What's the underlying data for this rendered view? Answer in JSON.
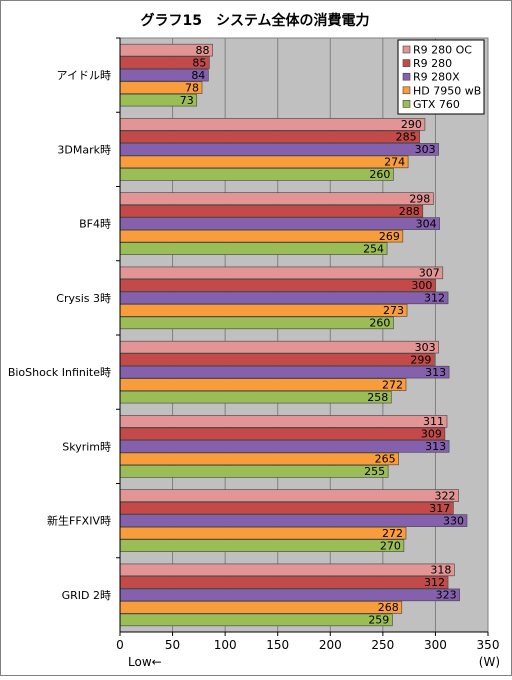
{
  "chart_data": {
    "type": "bar",
    "orientation": "horizontal",
    "title": "グラフ15　システム全体の消費電力",
    "x_unit": "(W)",
    "x_note": "Low←",
    "xlim": [
      0,
      350
    ],
    "x_ticks": [
      0,
      50,
      100,
      150,
      200,
      250,
      300,
      350
    ],
    "grid": true,
    "legend_position": "top-right",
    "categories": [
      "アイドル時",
      "3DMark時",
      "BF4時",
      "Crysis 3時",
      "BioShock Infinite時",
      "Skyrim時",
      "新生FFXIV時",
      "GRID 2時"
    ],
    "series": [
      {
        "name": "R9 280 OC",
        "color": "#e39494",
        "values": [
          88,
          290,
          298,
          307,
          303,
          311,
          322,
          318
        ]
      },
      {
        "name": "R9 280",
        "color": "#c44a4a",
        "values": [
          85,
          285,
          288,
          300,
          299,
          309,
          317,
          312
        ]
      },
      {
        "name": "R9 280X",
        "color": "#8460ad",
        "values": [
          84,
          303,
          304,
          312,
          313,
          313,
          330,
          323
        ]
      },
      {
        "name": "HD 7950 wB",
        "color": "#f89c3c",
        "values": [
          78,
          274,
          269,
          273,
          272,
          265,
          272,
          268
        ]
      },
      {
        "name": "GTX 760",
        "color": "#9bbd55",
        "values": [
          73,
          260,
          254,
          260,
          258,
          255,
          270,
          259
        ]
      }
    ]
  }
}
